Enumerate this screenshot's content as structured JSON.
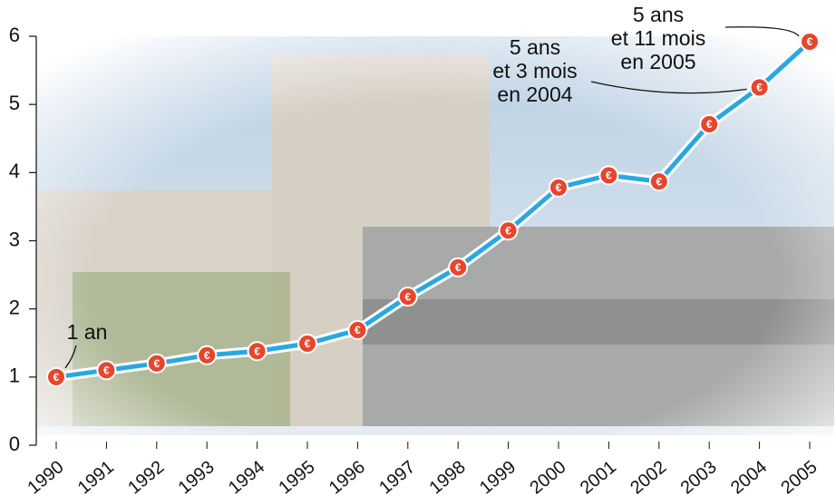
{
  "chart_data": {
    "type": "line",
    "categories": [
      "1990",
      "1991",
      "1992",
      "1993",
      "1994",
      "1995",
      "1996",
      "1997",
      "1998",
      "1999",
      "2000",
      "2001",
      "2002",
      "2003",
      "2004",
      "2005"
    ],
    "series": [
      {
        "color": "#29a8e0",
        "values": [
          1.0,
          1.1,
          1.2,
          1.32,
          1.38,
          1.49,
          1.69,
          2.18,
          2.61,
          3.15,
          3.78,
          3.96,
          3.87,
          4.71,
          5.25,
          5.92
        ]
      }
    ],
    "marker_color": "#e8452d",
    "marker_symbol": "€",
    "ylim": [
      0,
      6
    ],
    "yticks": [
      0,
      1,
      2,
      3,
      4,
      5,
      6
    ],
    "annotations": [
      {
        "lines": [
          "1 an"
        ],
        "index": 0
      },
      {
        "lines": [
          "5 ans",
          "et 3 mois",
          "en 2004"
        ],
        "index": 14
      },
      {
        "lines": [
          "5 ans",
          "et 11 mois",
          "en 2005"
        ],
        "index": 15
      }
    ]
  }
}
